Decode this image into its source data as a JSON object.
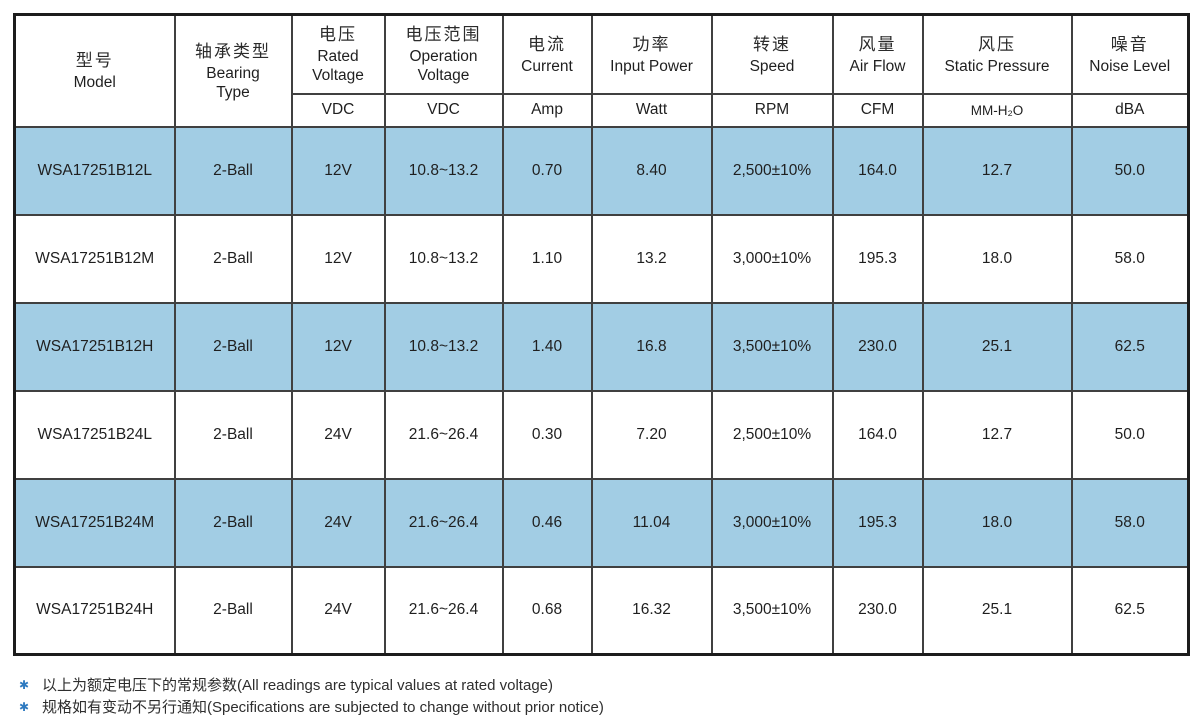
{
  "colors": {
    "row_highlight": "#A2CDE4",
    "note_marker": "#2E7AC0",
    "table_border": "#1C1C1C",
    "grid_line": "#404040"
  },
  "table": {
    "header": {
      "columns": [
        {
          "key": "model",
          "zh": "型号",
          "en": "Model",
          "unit": ""
        },
        {
          "key": "bearing_type",
          "zh": "轴承类型",
          "en": "Bearing Type",
          "unit": ""
        },
        {
          "key": "rated_voltage",
          "zh": "电压",
          "en": "Rated Voltage",
          "unit": "VDC"
        },
        {
          "key": "operation_voltage",
          "zh": "电压范围",
          "en": "Operation Voltage",
          "unit": "VDC"
        },
        {
          "key": "current",
          "zh": "电流",
          "en": "Current",
          "unit": "Amp"
        },
        {
          "key": "input_power",
          "zh": "功率",
          "en": "Input Power",
          "unit": "Watt"
        },
        {
          "key": "speed",
          "zh": "转速",
          "en": "Speed",
          "unit": "RPM"
        },
        {
          "key": "air_flow",
          "zh": "风量",
          "en": "Air Flow",
          "unit": "CFM"
        },
        {
          "key": "static_pressure",
          "zh": "风压",
          "en": "Static Pressure",
          "unit": "MM-H₂O"
        },
        {
          "key": "noise_level",
          "zh": "噪音",
          "en": "Noise Level",
          "unit": "dBA"
        }
      ]
    },
    "row_fields": [
      "model",
      "bearing_type",
      "rated_voltage",
      "operation_voltage",
      "current",
      "input_power",
      "speed",
      "air_flow",
      "static_pressure",
      "noise_level"
    ],
    "rows": [
      {
        "model": "WSA17251B12L",
        "bearing_type": "2-Ball",
        "rated_voltage": "12V",
        "operation_voltage": "10.8~13.2",
        "current": "0.70",
        "input_power": "8.40",
        "speed": "2,500±10%",
        "air_flow": "164.0",
        "static_pressure": "12.7",
        "noise_level": "50.0",
        "highlighted": true
      },
      {
        "model": "WSA17251B12M",
        "bearing_type": "2-Ball",
        "rated_voltage": "12V",
        "operation_voltage": "10.8~13.2",
        "current": "1.10",
        "input_power": "13.2",
        "speed": "3,000±10%",
        "air_flow": "195.3",
        "static_pressure": "18.0",
        "noise_level": "58.0",
        "highlighted": false
      },
      {
        "model": "WSA17251B12H",
        "bearing_type": "2-Ball",
        "rated_voltage": "12V",
        "operation_voltage": "10.8~13.2",
        "current": "1.40",
        "input_power": "16.8",
        "speed": "3,500±10%",
        "air_flow": "230.0",
        "static_pressure": "25.1",
        "noise_level": "62.5",
        "highlighted": true
      },
      {
        "model": "WSA17251B24L",
        "bearing_type": "2-Ball",
        "rated_voltage": "24V",
        "operation_voltage": "21.6~26.4",
        "current": "0.30",
        "input_power": "7.20",
        "speed": "2,500±10%",
        "air_flow": "164.0",
        "static_pressure": "12.7",
        "noise_level": "50.0",
        "highlighted": false
      },
      {
        "model": "WSA17251B24M",
        "bearing_type": "2-Ball",
        "rated_voltage": "24V",
        "operation_voltage": "21.6~26.4",
        "current": "0.46",
        "input_power": "11.04",
        "speed": "3,000±10%",
        "air_flow": "195.3",
        "static_pressure": "18.0",
        "noise_level": "58.0",
        "highlighted": true
      },
      {
        "model": "WSA17251B24H",
        "bearing_type": "2-Ball",
        "rated_voltage": "24V",
        "operation_voltage": "21.6~26.4",
        "current": "0.68",
        "input_power": "16.32",
        "speed": "3,500±10%",
        "air_flow": "230.0",
        "static_pressure": "25.1",
        "noise_level": "62.5",
        "highlighted": false
      }
    ]
  },
  "notes": {
    "marker": "✱",
    "items": [
      "以上为额定电压下的常规参数(All readings are typical values at rated voltage)",
      "规格如有变动不另行通知(Specifications are subjected to change without prior notice)"
    ]
  }
}
